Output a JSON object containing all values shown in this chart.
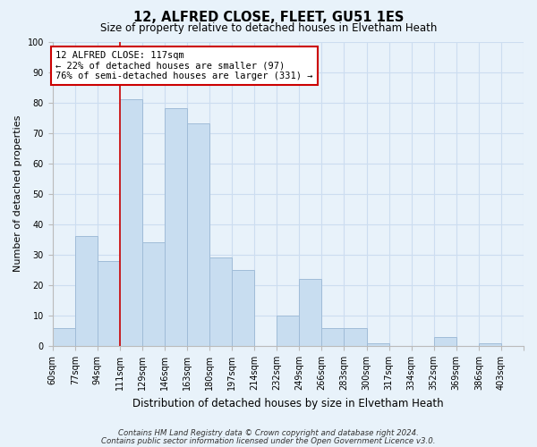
{
  "title": "12, ALFRED CLOSE, FLEET, GU51 1ES",
  "subtitle": "Size of property relative to detached houses in Elvetham Heath",
  "xlabel": "Distribution of detached houses by size in Elvetham Heath",
  "ylabel": "Number of detached properties",
  "bin_labels": [
    "60sqm",
    "77sqm",
    "94sqm",
    "111sqm",
    "129sqm",
    "146sqm",
    "163sqm",
    "180sqm",
    "197sqm",
    "214sqm",
    "232sqm",
    "249sqm",
    "266sqm",
    "283sqm",
    "300sqm",
    "317sqm",
    "334sqm",
    "352sqm",
    "369sqm",
    "386sqm",
    "403sqm"
  ],
  "bar_values": [
    6,
    36,
    28,
    81,
    34,
    78,
    73,
    29,
    25,
    0,
    10,
    22,
    6,
    6,
    1,
    0,
    0,
    3,
    0,
    1,
    0
  ],
  "bar_color": "#c8ddf0",
  "bar_edge_color": "#a0bcd8",
  "property_line_x": 3,
  "property_line_color": "#cc0000",
  "ylim": [
    0,
    100
  ],
  "yticks": [
    0,
    10,
    20,
    30,
    40,
    50,
    60,
    70,
    80,
    90,
    100
  ],
  "annotation_box_text": "12 ALFRED CLOSE: 117sqm\n← 22% of detached houses are smaller (97)\n76% of semi-detached houses are larger (331) →",
  "annotation_box_color": "#ffffff",
  "annotation_box_edge_color": "#cc0000",
  "footer_line1": "Contains HM Land Registry data © Crown copyright and database right 2024.",
  "footer_line2": "Contains public sector information licensed under the Open Government Licence v3.0.",
  "grid_color": "#ccddf0",
  "background_color": "#e8f2fa"
}
